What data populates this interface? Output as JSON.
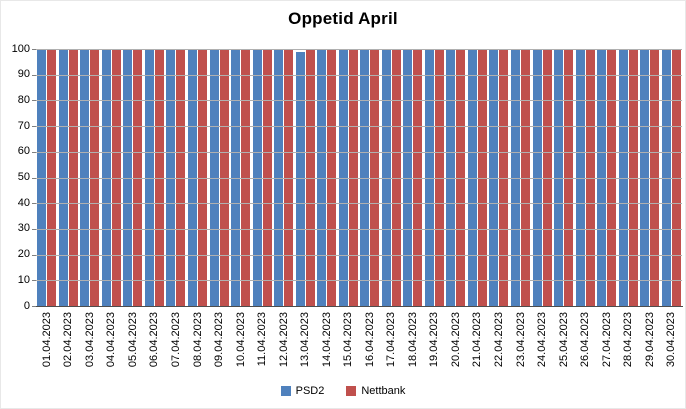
{
  "title": "Oppetid April",
  "colors": {
    "psd2": "#4F81BD",
    "nettbank": "#C0504D",
    "gridline": "#b0b0b0",
    "axis": "#4d4d4d",
    "text": "#000000"
  },
  "chart_data": {
    "type": "bar",
    "title": "Oppetid April",
    "xlabel": "",
    "ylabel": "",
    "ylim": [
      0,
      100
    ],
    "yticks": [
      0,
      10,
      20,
      30,
      40,
      50,
      60,
      70,
      80,
      90,
      100
    ],
    "grid": true,
    "gridlines_over_bars": true,
    "legend_position": "bottom",
    "x_label_rotation": 90,
    "categories": [
      "01.04.2023",
      "02.04.2023",
      "03.04.2023",
      "04.04.2023",
      "05.04.2023",
      "06.04.2023",
      "07.04.2023",
      "08.04.2023",
      "09.04.2023",
      "10.04.2023",
      "11.04.2023",
      "12.04.2023",
      "13.04.2023",
      "14.04.2023",
      "15.04.2023",
      "16.04.2023",
      "17.04.2023",
      "18.04.2023",
      "19.04.2023",
      "20.04.2023",
      "21.04.2023",
      "22.04.2023",
      "23.04.2023",
      "24.04.2023",
      "25.04.2023",
      "26.04.2023",
      "27.04.2023",
      "28.04.2023",
      "29.04.2023",
      "30.04.2023"
    ],
    "series": [
      {
        "name": "PSD2",
        "color": "#4F81BD",
        "values": [
          100,
          100,
          100,
          100,
          100,
          100,
          100,
          100,
          100,
          100,
          100,
          100,
          99,
          100,
          100,
          100,
          100,
          100,
          100,
          100,
          100,
          100,
          100,
          100,
          100,
          100,
          100,
          100,
          100,
          100
        ]
      },
      {
        "name": "Nettbank",
        "color": "#C0504D",
        "values": [
          100,
          100,
          100,
          100,
          100,
          100,
          100,
          100,
          100,
          100,
          100,
          100,
          100,
          100,
          100,
          100,
          100,
          100,
          100,
          100,
          100,
          100,
          100,
          100,
          100,
          100,
          100,
          100,
          100,
          100
        ]
      }
    ]
  }
}
